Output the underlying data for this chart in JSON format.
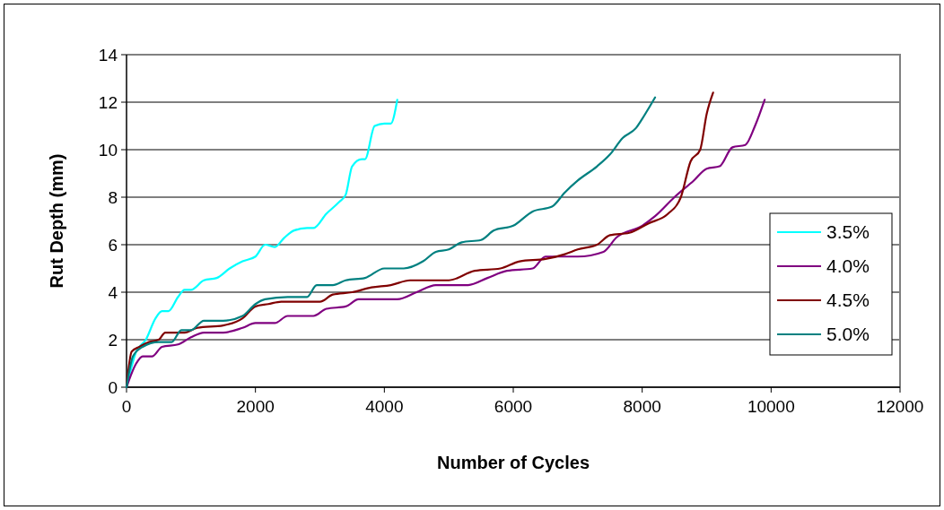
{
  "chart_data": {
    "type": "line",
    "xlabel": "Number of Cycles",
    "ylabel": "Rut Depth (mm)",
    "xlim": [
      0,
      12000
    ],
    "xticks": [
      0,
      2000,
      4000,
      6000,
      8000,
      10000,
      12000
    ],
    "ylim": [
      0,
      14
    ],
    "yticks": [
      0,
      2,
      4,
      6,
      8,
      10,
      12,
      14
    ],
    "grid": "y",
    "legend": "right",
    "marker": "none",
    "line_style": "solid",
    "series": [
      {
        "name": "3.5%",
        "color": "#00ffff",
        "x": [
          0,
          150,
          300,
          450,
          550,
          650,
          800,
          900,
          1000,
          1200,
          1400,
          1600,
          1800,
          2000,
          2150,
          2300,
          2450,
          2600,
          2800,
          2900,
          3100,
          3300,
          3400,
          3500,
          3650,
          3700,
          3850,
          4000,
          4100,
          4200
        ],
        "values": [
          0,
          1.5,
          2.0,
          2.9,
          3.2,
          3.2,
          3.8,
          4.1,
          4.1,
          4.5,
          4.6,
          5.0,
          5.3,
          5.5,
          6.0,
          5.9,
          6.3,
          6.6,
          6.7,
          6.7,
          7.3,
          7.8,
          8.1,
          9.3,
          9.6,
          9.6,
          11.0,
          11.1,
          11.1,
          12.1
        ]
      },
      {
        "name": "4.0%",
        "color": "#800080",
        "x": [
          0,
          150,
          250,
          400,
          550,
          800,
          1000,
          1200,
          1500,
          1800,
          2000,
          2300,
          2500,
          2900,
          3100,
          3400,
          3600,
          4200,
          4500,
          4800,
          5300,
          5600,
          5900,
          6300,
          6500,
          7000,
          7400,
          7600,
          8000,
          8200,
          8500,
          8800,
          9000,
          9200,
          9400,
          9600,
          9750,
          9900
        ],
        "values": [
          0,
          1.0,
          1.3,
          1.3,
          1.7,
          1.8,
          2.1,
          2.3,
          2.3,
          2.5,
          2.7,
          2.7,
          3.0,
          3.0,
          3.3,
          3.4,
          3.7,
          3.7,
          4.0,
          4.3,
          4.3,
          4.6,
          4.9,
          5.0,
          5.5,
          5.5,
          5.7,
          6.3,
          6.8,
          7.2,
          8.0,
          8.7,
          9.2,
          9.3,
          10.1,
          10.2,
          11.0,
          12.1
        ]
      },
      {
        "name": "4.5%",
        "color": "#800000",
        "x": [
          0,
          80,
          200,
          350,
          500,
          600,
          900,
          1100,
          1500,
          1800,
          2000,
          2200,
          2400,
          3000,
          3200,
          3500,
          3800,
          4100,
          4400,
          5000,
          5400,
          5800,
          6100,
          6500,
          6800,
          7000,
          7300,
          7500,
          7800,
          8100,
          8400,
          8600,
          8750,
          8900,
          9000,
          9100
        ],
        "values": [
          0,
          1.5,
          1.7,
          1.9,
          2.0,
          2.3,
          2.3,
          2.5,
          2.6,
          2.9,
          3.4,
          3.5,
          3.6,
          3.6,
          3.9,
          4.0,
          4.2,
          4.3,
          4.5,
          4.5,
          4.9,
          5.0,
          5.3,
          5.4,
          5.6,
          5.8,
          6.0,
          6.4,
          6.5,
          6.9,
          7.3,
          8.0,
          9.5,
          10.0,
          11.5,
          12.4
        ]
      },
      {
        "name": "5.0%",
        "color": "#008080",
        "x": [
          0,
          100,
          250,
          500,
          700,
          850,
          1000,
          1200,
          1500,
          1800,
          2000,
          2150,
          2500,
          2800,
          2950,
          3200,
          3400,
          3700,
          4000,
          4300,
          4600,
          4800,
          5000,
          5200,
          5500,
          5700,
          6000,
          6300,
          6600,
          6800,
          7000,
          7300,
          7500,
          7700,
          7900,
          8000,
          8200
        ],
        "values": [
          0,
          1.3,
          1.7,
          1.9,
          1.9,
          2.4,
          2.4,
          2.8,
          2.8,
          3.0,
          3.5,
          3.7,
          3.8,
          3.8,
          4.3,
          4.3,
          4.5,
          4.6,
          5.0,
          5.0,
          5.3,
          5.7,
          5.8,
          6.1,
          6.2,
          6.6,
          6.8,
          7.4,
          7.6,
          8.2,
          8.7,
          9.3,
          9.8,
          10.5,
          10.9,
          11.3,
          12.2
        ]
      }
    ]
  }
}
